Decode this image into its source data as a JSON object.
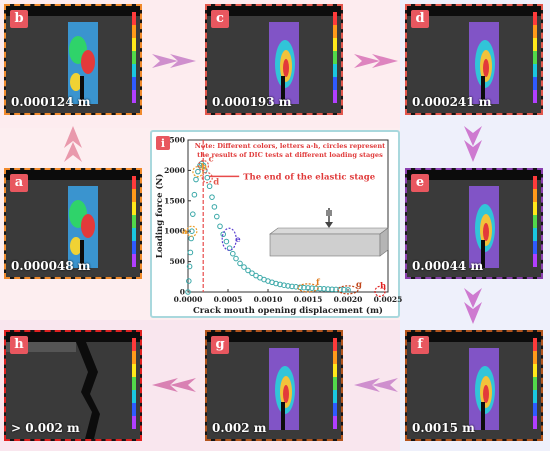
{
  "panels": [
    {
      "letter": "b",
      "caption": "0.000124 m",
      "border": "#f08a2c"
    },
    {
      "letter": "c",
      "caption": "0.000193 m",
      "border": "#e2574c"
    },
    {
      "letter": "d",
      "caption": "0.000241 m",
      "border": "#e2574c"
    },
    {
      "letter": "a",
      "caption": "0.000048 m",
      "border": "#f08a2c"
    },
    {
      "letter": "e",
      "caption": "0.00044 m",
      "border": "#8a3fae"
    },
    {
      "letter": "h",
      "caption": "> 0.002 m",
      "border": "#e02020"
    },
    {
      "letter": "g",
      "caption": "0.002 m",
      "border": "#b2541c"
    },
    {
      "letter": "f",
      "caption": "0.0015 m",
      "border": "#b2541c"
    }
  ],
  "chart": {
    "panel_letter": "i",
    "note": "Note: Different colors, letters a-h, circles represent the results of DIC tests at different loading stages",
    "elastic_label": "The end of the elastic stage",
    "xlabel": "Crack mouth opening displacement (m)",
    "ylabel": "Loading force (N)",
    "stage_labels": [
      "a",
      "b",
      "c",
      "d",
      "e",
      "f",
      "g",
      "h"
    ],
    "x_ticks": [
      "0.0000",
      "0.0005",
      "0.0010",
      "0.0015",
      "0.0020",
      "0.0025"
    ],
    "y_ticks": [
      "0",
      "500",
      "1000",
      "1500",
      "2000",
      "2500"
    ]
  },
  "chart_data": {
    "type": "scatter",
    "xlabel": "Crack mouth opening displacement (m)",
    "ylabel": "Loading force (N)",
    "xlim": [
      0,
      0.0025
    ],
    "ylim": [
      0,
      2500
    ],
    "x": [
      0.0,
      1e-05,
      2e-05,
      3e-05,
      4e-05,
      4.8e-05,
      6e-05,
      8e-05,
      0.0001,
      0.000124,
      0.00015,
      0.00017,
      0.000193,
      0.00021,
      0.000241,
      0.00027,
      0.0003,
      0.00033,
      0.00036,
      0.0004,
      0.00044,
      0.00048,
      0.00052,
      0.00056,
      0.0006,
      0.00065,
      0.0007,
      0.00075,
      0.0008,
      0.00085,
      0.0009,
      0.00095,
      0.001,
      0.00105,
      0.0011,
      0.00115,
      0.0012,
      0.00125,
      0.0013,
      0.00135,
      0.0014,
      0.00145,
      0.0015,
      0.00155,
      0.0016,
      0.00165,
      0.0017,
      0.00175,
      0.0018,
      0.00185,
      0.0019,
      0.00195,
      0.002
    ],
    "y": [
      0,
      180,
      420,
      650,
      880,
      1000,
      1280,
      1600,
      1850,
      1980,
      2080,
      2110,
      2080,
      2000,
      1880,
      1740,
      1560,
      1400,
      1240,
      1080,
      950,
      830,
      720,
      630,
      550,
      470,
      410,
      355,
      310,
      270,
      235,
      205,
      180,
      160,
      140,
      125,
      112,
      100,
      92,
      85,
      78,
      72,
      68,
      63,
      58,
      55,
      52,
      48,
      45,
      42,
      40,
      38,
      35
    ],
    "stages": [
      {
        "label": "a",
        "x": 4.8e-05,
        "y": 1000
      },
      {
        "label": "b",
        "x": 0.000124,
        "y": 1980
      },
      {
        "label": "c",
        "x": 0.000193,
        "y": 2080
      },
      {
        "label": "d",
        "x": 0.000241,
        "y": 1880
      },
      {
        "label": "e",
        "x": 0.00044,
        "y": 950
      },
      {
        "label": "f",
        "x": 0.0015,
        "y": 68
      },
      {
        "label": "g",
        "x": 0.002,
        "y": 35
      },
      {
        "label": "h",
        "x": 0.0024,
        "y": 10
      }
    ],
    "elastic_end_x": 0.00019
  }
}
